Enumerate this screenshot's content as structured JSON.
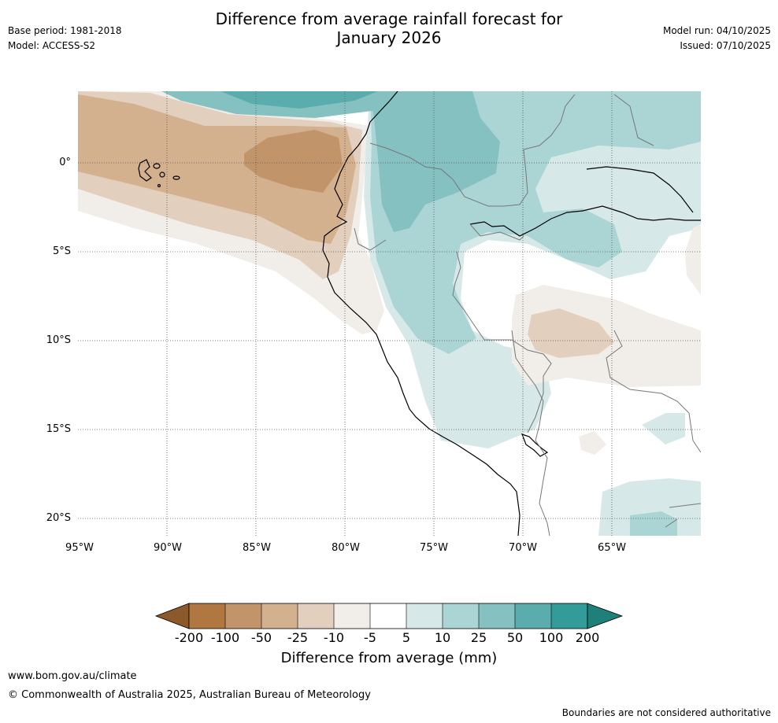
{
  "header": {
    "title_line1": "Difference from average rainfall forecast for",
    "title_line2": "January 2026",
    "base_period": "Base period: 1981-2018",
    "model": "Model: ACCESS-S2",
    "model_run": "Model run: 04/10/2025",
    "issued": "Issued: 07/10/2025"
  },
  "map": {
    "region": "Western South America and eastern Pacific",
    "latitude_labels": [
      "0°",
      "5°S",
      "10°S",
      "15°S",
      "20°S"
    ],
    "longitude_labels": [
      "95°W",
      "90°W",
      "85°W",
      "80°W",
      "75°W",
      "70°W",
      "65°W"
    ]
  },
  "colorbar": {
    "label": "Difference from average (mm)",
    "ticks": [
      "-200",
      "-100",
      "-50",
      "-25",
      "-10",
      "-5",
      "5",
      "10",
      "25",
      "50",
      "100",
      "200"
    ],
    "colors": [
      "#8c5a2a",
      "#b07840",
      "#c2946a",
      "#d3b08e",
      "#e2cfbd",
      "#f1ede8",
      "#ffffff",
      "#d6e9e8",
      "#abd5d4",
      "#84c1c0",
      "#5aadac",
      "#339c98",
      "#1f7f7b"
    ]
  },
  "footer": {
    "website": "www.bom.gov.au/climate",
    "copyright": "© Commonwealth of Australia 2025, Australian Bureau of Meteorology",
    "disclaimer": "Boundaries are not considered authoritative"
  }
}
